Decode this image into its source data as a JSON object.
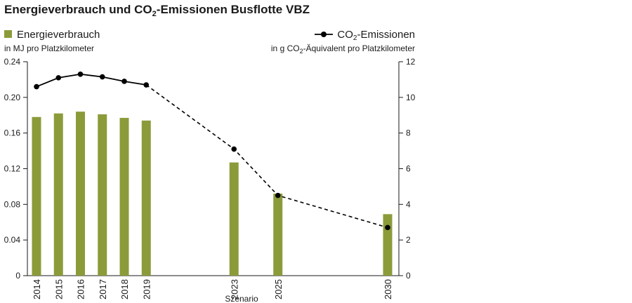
{
  "chart_data": {
    "type": "bar",
    "title_parts": {
      "before": "Energieverbrauch und CO",
      "sub": "2",
      "after": "-Emissionen Busflotte VBZ"
    },
    "categories": [
      "2014",
      "2015",
      "2016",
      "2017",
      "2018",
      "2019",
      "2023",
      "2025",
      "2030"
    ],
    "x_positions": [
      2014,
      2015,
      2016,
      2017,
      2018,
      2019,
      2023,
      2025,
      2030
    ],
    "scenario_label": "Szenario",
    "colors": {
      "bars": "#8c9b3a",
      "line": "#000000"
    },
    "series": [
      {
        "name": "Energieverbrauch",
        "type": "bar",
        "axis": "left",
        "unit_label": "in MJ pro Platzkilometer",
        "values": [
          0.178,
          0.182,
          0.184,
          0.181,
          0.177,
          0.174,
          0.127,
          0.092,
          0.069
        ]
      },
      {
        "name_parts": {
          "before": "CO",
          "sub": "2",
          "after": "-Emissionen"
        },
        "type": "line",
        "axis": "right",
        "unit_parts": {
          "before": "in g CO",
          "sub": "2",
          "after": "-Äquivalent pro Platzkilometer"
        },
        "values": [
          10.6,
          11.1,
          11.3,
          11.15,
          10.9,
          10.7,
          7.1,
          4.5,
          2.7
        ],
        "solid_through": "2019",
        "dashed_from": "2019"
      }
    ],
    "y_left": {
      "min": 0,
      "max": 0.24,
      "ticks": [
        "0",
        "0.04",
        "0.08",
        "0.12",
        "0.16",
        "0.20",
        "0.24"
      ],
      "tick_values": [
        0,
        0.04,
        0.08,
        0.12,
        0.16,
        0.2,
        0.24
      ]
    },
    "y_right": {
      "min": 0,
      "max": 12,
      "ticks": [
        "0",
        "2",
        "4",
        "6",
        "8",
        "10",
        "12"
      ],
      "tick_values": [
        0,
        2,
        4,
        6,
        8,
        10,
        12
      ]
    },
    "grid": false,
    "legend_placement": "top"
  }
}
